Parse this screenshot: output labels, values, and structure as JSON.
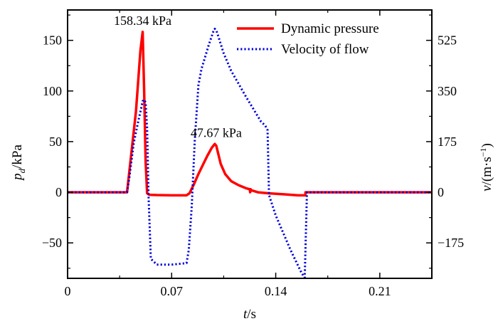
{
  "chart_data": {
    "type": "line",
    "xlabel_main": "t",
    "xlabel_unit": "/s",
    "ylabel_left_main": "p",
    "ylabel_left_sub": "d",
    "ylabel_left_unit": "/kPa",
    "ylabel_right_main": "v",
    "ylabel_right_unit": "/(m·s",
    "ylabel_right_exp": "−1",
    "ylabel_right_close": ")",
    "xlim": [
      0,
      0.245
    ],
    "ylim_left": [
      -85,
      180
    ],
    "ylim_right": [
      -297.5,
      630
    ],
    "x_ticks": [
      0,
      0.07,
      0.14,
      0.21
    ],
    "x_tick_labels": [
      "0",
      "0.07",
      "0.14",
      "0.21"
    ],
    "y_left_ticks": [
      -50,
      0,
      50,
      100,
      150
    ],
    "y_left_tick_labels": [
      "−50",
      "0",
      "50",
      "100",
      "150"
    ],
    "y_right_ticks": [
      -175,
      0,
      175,
      350,
      525
    ],
    "y_right_tick_labels": [
      "−175",
      "0",
      "175",
      "350",
      "525"
    ],
    "grid": false,
    "legend_position": "top-right",
    "colors": {
      "pressure": "#ff0000",
      "velocity": "#0000dd"
    },
    "series": [
      {
        "name": "Dynamic pressure",
        "axis": "left",
        "style": "solid",
        "x": [
          0,
          0.04,
          0.046,
          0.049,
          0.0505,
          0.0515,
          0.0525,
          0.0535,
          0.055,
          0.06,
          0.07,
          0.08,
          0.082,
          0.085,
          0.088,
          0.091,
          0.094,
          0.097,
          0.099,
          0.1,
          0.101,
          0.103,
          0.106,
          0.11,
          0.115,
          0.12,
          0.1225,
          0.1228,
          0.1232,
          0.1235,
          0.128,
          0.135,
          0.145,
          0.155,
          0.16,
          0.16,
          0.245
        ],
        "y": [
          0,
          0,
          80,
          140,
          158.34,
          100,
          30,
          -1,
          -2.5,
          -2.8,
          -3,
          -3,
          -1,
          8,
          18,
          27,
          36,
          44,
          47.67,
          46,
          40,
          28,
          18,
          11,
          7,
          4,
          3,
          0,
          3,
          2,
          0,
          -1,
          -2,
          -3,
          -3,
          0,
          0
        ]
      },
      {
        "name": "Velocity of flow",
        "axis": "right",
        "style": "dotted",
        "x": [
          0,
          0.04,
          0.0415,
          0.0445,
          0.0475,
          0.0495,
          0.0505,
          0.0515,
          0.0525,
          0.0535,
          0.0545,
          0.056,
          0.06,
          0.07,
          0.08,
          0.0815,
          0.0835,
          0.0855,
          0.088,
          0.09,
          0.095,
          0.098,
          0.099,
          0.1,
          0.101,
          0.105,
          0.11,
          0.12,
          0.13,
          0.133,
          0.1345,
          0.1355,
          0.14,
          0.15,
          0.1575,
          0.1595,
          0.1605,
          0.161,
          0.17,
          0.245
        ],
        "y": [
          0,
          0,
          50,
          170,
          245,
          290,
          315,
          320,
          310,
          220,
          -20,
          -230,
          -250,
          -250,
          -245,
          -200,
          -50,
          175,
          370,
          425,
          510,
          555,
          565,
          560,
          545,
          480,
          420,
          330,
          245,
          230,
          215,
          -10,
          -80,
          -200,
          -280,
          -295,
          -100,
          0,
          0,
          0
        ]
      }
    ],
    "annotations": [
      {
        "text": "158.34 kPa",
        "x": 0.0505,
        "y": 158.34,
        "axis": "left"
      },
      {
        "text": "47.67 kPa",
        "x": 0.099,
        "y": 47.67,
        "axis": "left"
      }
    ]
  }
}
